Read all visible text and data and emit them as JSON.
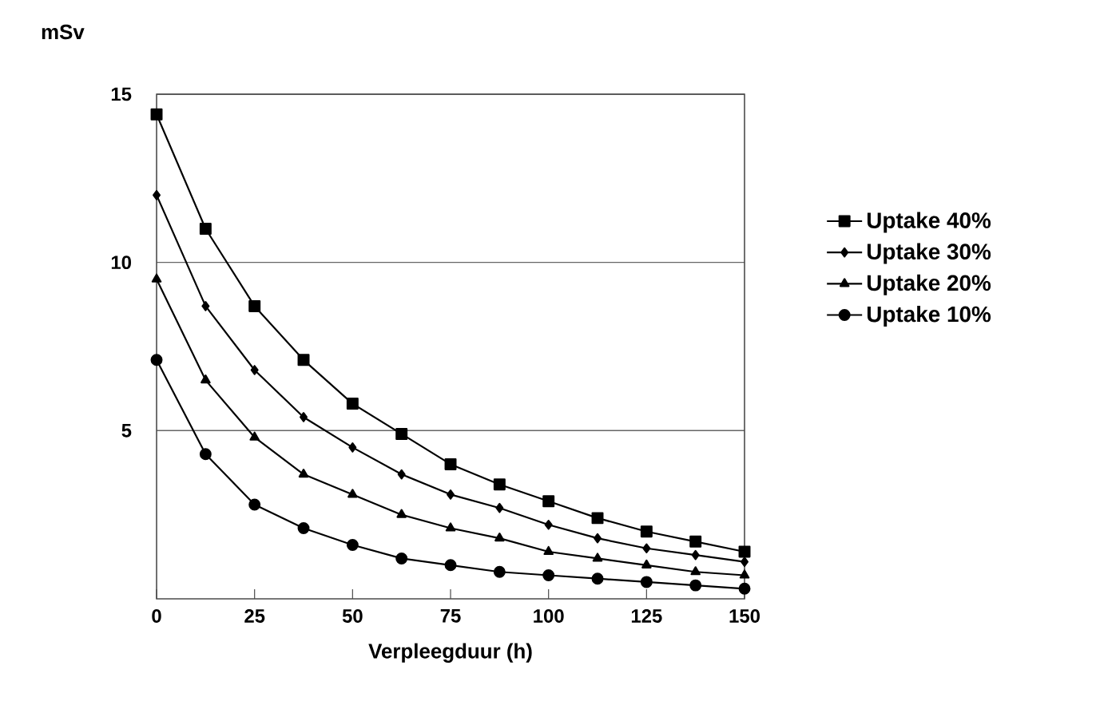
{
  "chart_data": {
    "type": "line",
    "ylabel": "mSv",
    "xlabel": "Verpleegduur (h)",
    "x": [
      0,
      12.5,
      25,
      37.5,
      50,
      62.5,
      75,
      87.5,
      100,
      112.5,
      125,
      137.5,
      150
    ],
    "series": [
      {
        "name": "Uptake 40%",
        "color": "#000000",
        "marker": "square",
        "values": [
          14.4,
          11.0,
          8.7,
          7.1,
          5.8,
          4.9,
          4.0,
          3.4,
          2.9,
          2.4,
          2.0,
          1.7,
          1.4
        ]
      },
      {
        "name": "Uptake 30%",
        "color": "#000000",
        "marker": "diamond",
        "values": [
          12.0,
          8.7,
          6.8,
          5.4,
          4.5,
          3.7,
          3.1,
          2.7,
          2.2,
          1.8,
          1.5,
          1.3,
          1.1
        ]
      },
      {
        "name": "Uptake 20%",
        "color": "#000000",
        "marker": "triangle",
        "values": [
          9.5,
          6.5,
          4.8,
          3.7,
          3.1,
          2.5,
          2.1,
          1.8,
          1.4,
          1.2,
          1.0,
          0.8,
          0.7
        ]
      },
      {
        "name": "Uptake 10%",
        "color": "#000000",
        "marker": "circle",
        "values": [
          7.1,
          4.3,
          2.8,
          2.1,
          1.6,
          1.2,
          1.0,
          0.8,
          0.7,
          0.6,
          0.5,
          0.4,
          0.3
        ]
      }
    ],
    "xlim": [
      0,
      150
    ],
    "ylim": [
      0,
      15
    ],
    "xticks": [
      0,
      25,
      50,
      75,
      100,
      125,
      150
    ],
    "yticks": [
      5,
      10,
      15
    ],
    "grid": "y",
    "legend": "right",
    "line_style": "solid"
  }
}
